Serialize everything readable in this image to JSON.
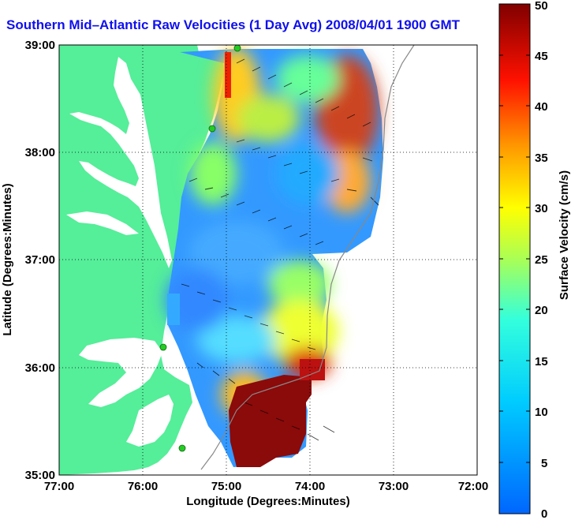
{
  "title": "Southern Mid–Atlantic Raw Velocities (1 Day Avg) 2008/04/01 1900 GMT",
  "map": {
    "xlabel": "Longitude (Degrees:Minutes)",
    "ylabel": "Latitude (Degrees:Minutes)",
    "xticks": [
      "77:00",
      "76:00",
      "75:00",
      "74:00",
      "73:00",
      "72:00"
    ],
    "yticks": [
      "39:00",
      "38:00",
      "37:00",
      "36:00",
      "35:00"
    ],
    "lon_range": [
      -77,
      -72
    ],
    "lat_range": [
      35,
      39
    ],
    "grid": "dotted",
    "land_color": "#55ee99",
    "station_color": "#22cc22"
  },
  "colorbar": {
    "label": "Surface Velocity (cm/s)",
    "ticks": [
      "50",
      "45",
      "40",
      "35",
      "30",
      "25",
      "20",
      "15",
      "10",
      "5",
      "0"
    ],
    "range": [
      0,
      50
    ],
    "colormap": [
      "#0000ff",
      "#00ffff",
      "#ffff00",
      "#ff0000",
      "#800000"
    ]
  }
}
